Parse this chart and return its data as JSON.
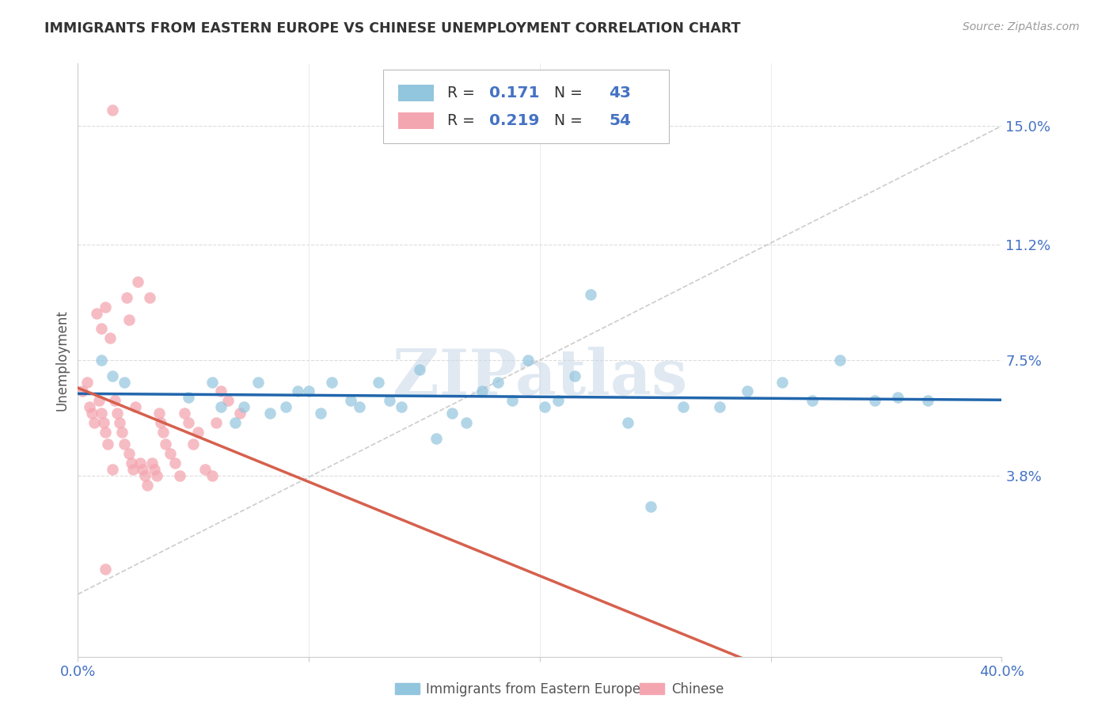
{
  "title": "IMMIGRANTS FROM EASTERN EUROPE VS CHINESE UNEMPLOYMENT CORRELATION CHART",
  "source": "Source: ZipAtlas.com",
  "ylabel": "Unemployment",
  "yticks": [
    0.0,
    0.038,
    0.075,
    0.112,
    0.15
  ],
  "ytick_labels": [
    "",
    "3.8%",
    "7.5%",
    "11.2%",
    "15.0%"
  ],
  "xlim": [
    0.0,
    0.4
  ],
  "ylim": [
    -0.02,
    0.17
  ],
  "blue_color": "#92c5de",
  "pink_color": "#f4a6b0",
  "blue_line_color": "#2166ac",
  "pink_line_color": "#d6604d",
  "diag_line_color": "#cccccc",
  "series1_label": "Immigrants from Eastern Europe",
  "series2_label": "Chinese",
  "watermark": "ZIPatlas",
  "blue_r": 0.171,
  "blue_n": 43,
  "pink_r": 0.219,
  "pink_n": 54,
  "blue_x": [
    0.01,
    0.015,
    0.02,
    0.048,
    0.058,
    0.062,
    0.068,
    0.072,
    0.078,
    0.083,
    0.09,
    0.095,
    0.1,
    0.105,
    0.11,
    0.118,
    0.122,
    0.13,
    0.135,
    0.14,
    0.148,
    0.155,
    0.162,
    0.168,
    0.175,
    0.182,
    0.188,
    0.195,
    0.202,
    0.208,
    0.215,
    0.222,
    0.238,
    0.248,
    0.262,
    0.278,
    0.29,
    0.305,
    0.318,
    0.33,
    0.345,
    0.355,
    0.368
  ],
  "blue_y": [
    0.075,
    0.07,
    0.068,
    0.063,
    0.068,
    0.06,
    0.055,
    0.06,
    0.068,
    0.058,
    0.06,
    0.065,
    0.065,
    0.058,
    0.068,
    0.062,
    0.06,
    0.068,
    0.062,
    0.06,
    0.072,
    0.05,
    0.058,
    0.055,
    0.065,
    0.068,
    0.062,
    0.075,
    0.06,
    0.062,
    0.07,
    0.096,
    0.055,
    0.028,
    0.06,
    0.06,
    0.065,
    0.068,
    0.062,
    0.075,
    0.062,
    0.063,
    0.062
  ],
  "pink_x": [
    0.002,
    0.004,
    0.005,
    0.006,
    0.007,
    0.008,
    0.009,
    0.01,
    0.01,
    0.011,
    0.012,
    0.012,
    0.013,
    0.014,
    0.015,
    0.016,
    0.017,
    0.018,
    0.019,
    0.02,
    0.021,
    0.022,
    0.022,
    0.023,
    0.024,
    0.025,
    0.026,
    0.027,
    0.028,
    0.029,
    0.03,
    0.031,
    0.032,
    0.033,
    0.034,
    0.035,
    0.036,
    0.037,
    0.038,
    0.04,
    0.042,
    0.044,
    0.046,
    0.048,
    0.05,
    0.052,
    0.055,
    0.058,
    0.06,
    0.062,
    0.065,
    0.07,
    0.015,
    0.012
  ],
  "pink_y": [
    0.065,
    0.068,
    0.06,
    0.058,
    0.055,
    0.09,
    0.062,
    0.058,
    0.085,
    0.055,
    0.052,
    0.092,
    0.048,
    0.082,
    0.155,
    0.062,
    0.058,
    0.055,
    0.052,
    0.048,
    0.095,
    0.045,
    0.088,
    0.042,
    0.04,
    0.06,
    0.1,
    0.042,
    0.04,
    0.038,
    0.035,
    0.095,
    0.042,
    0.04,
    0.038,
    0.058,
    0.055,
    0.052,
    0.048,
    0.045,
    0.042,
    0.038,
    0.058,
    0.055,
    0.048,
    0.052,
    0.04,
    0.038,
    0.055,
    0.065,
    0.062,
    0.058,
    0.04,
    0.008
  ]
}
